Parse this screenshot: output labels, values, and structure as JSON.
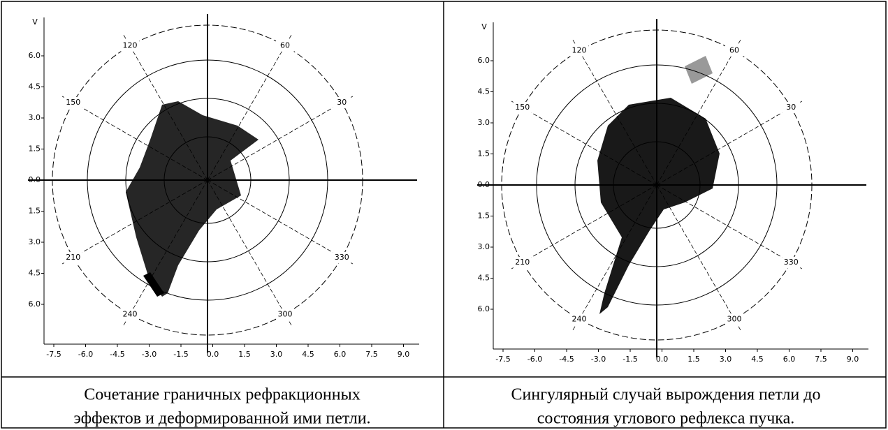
{
  "panels": [
    {
      "axis_label": "V",
      "y_tick_labels": [
        "6.0",
        "4.5",
        "3.0",
        "1.5",
        "0.0",
        "1.5",
        "3.0",
        "4.5",
        "6.0"
      ],
      "x_tick_labels": [
        "-7.5",
        "-6.0",
        "-4.5",
        "-3.0",
        "-1.5",
        "0.0",
        "1.5",
        "3.0",
        "4.5",
        "6.0",
        "7.5",
        "9.0"
      ],
      "angle_labels": [
        "120",
        "60",
        "150",
        "30",
        "210",
        "330",
        "240",
        "300"
      ],
      "caption": [
        "Сочетание граничных рефракционных",
        "эффектов и деформированной ими петли."
      ]
    },
    {
      "axis_label": "V",
      "y_tick_labels": [
        "6.0",
        "4.5",
        "3.0",
        "1.5",
        "0.0",
        "1.5",
        "3.0",
        "4.5",
        "6.0"
      ],
      "x_tick_labels": [
        "-7.5",
        "-6.0",
        "-4.5",
        "-3.0",
        "-1.5",
        "0.0",
        "1.5",
        "3.0",
        "4.5",
        "6.0",
        "7.5",
        "9.0"
      ],
      "angle_labels": [
        "120",
        "60",
        "150",
        "30",
        "210",
        "330",
        "240",
        "300"
      ],
      "caption": [
        "Сингулярный случай вырождения петли до",
        "состояния углового рефлекса пучка."
      ]
    }
  ]
}
